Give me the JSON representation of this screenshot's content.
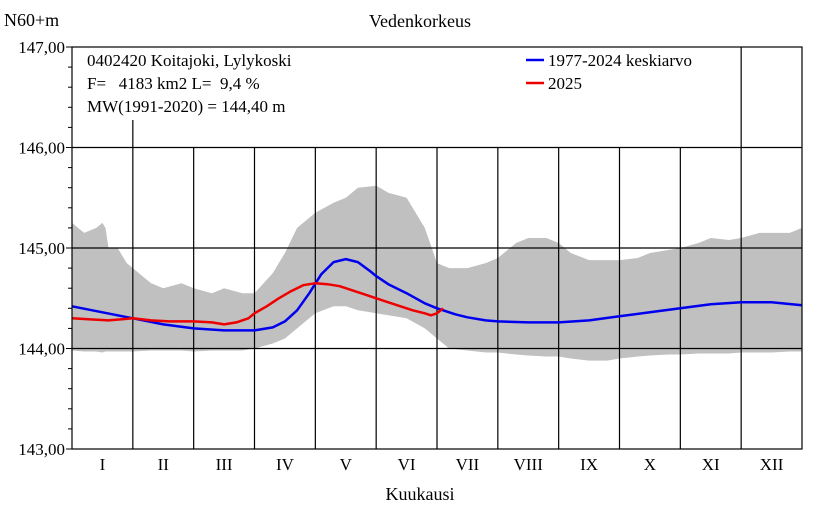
{
  "header": {
    "unit_label": "N60+m",
    "title": "Vedenkorkeus"
  },
  "info": {
    "station": "0402420 Koitajoki, Lylykoski",
    "area_line": "F=   4183 km2 L=  9,4 %",
    "mean_line": "MW(1991-2020) = 144,40 m"
  },
  "legend": {
    "mean": "1977-2024 keskiarvo",
    "current": "2025"
  },
  "colors": {
    "mean": "#0000ee",
    "current": "#ee0000",
    "range": "#c0c0c0",
    "grid": "#000000"
  },
  "chart_data": {
    "type": "line",
    "title": "Vedenkorkeus",
    "ylabel": "N60+m",
    "xlabel": "Kuukausi",
    "ylim": [
      143.0,
      147.0
    ],
    "xlim": [
      0,
      12
    ],
    "x_unit": "month",
    "yticks": [
      "147,00",
      "146,00",
      "145,00",
      "144,00",
      "143,00"
    ],
    "ytick_values": [
      147,
      146,
      145,
      144,
      143
    ],
    "categories": [
      "I",
      "II",
      "III",
      "IV",
      "V",
      "VI",
      "VII",
      "VIII",
      "IX",
      "X",
      "XI",
      "XII"
    ],
    "grid": true,
    "legend_position": "top-right",
    "range_band": {
      "x": [
        0,
        0.2,
        0.4,
        0.5,
        0.55,
        0.6,
        0.75,
        0.9,
        1.0,
        1.3,
        1.5,
        1.8,
        2.0,
        2.3,
        2.5,
        2.8,
        3.0,
        3.3,
        3.5,
        3.7,
        4.0,
        4.3,
        4.5,
        4.7,
        5.0,
        5.2,
        5.5,
        5.8,
        6.0,
        6.2,
        6.5,
        6.8,
        7.0,
        7.3,
        7.5,
        7.8,
        8.0,
        8.2,
        8.5,
        8.8,
        9.0,
        9.3,
        9.5,
        9.8,
        10.0,
        10.3,
        10.5,
        10.8,
        11.0,
        11.3,
        11.5,
        11.8,
        12.0
      ],
      "max": [
        145.25,
        145.15,
        145.2,
        145.25,
        145.2,
        145.0,
        145.0,
        144.85,
        144.8,
        144.65,
        144.6,
        144.65,
        144.6,
        144.55,
        144.6,
        144.55,
        144.55,
        144.75,
        144.95,
        145.2,
        145.35,
        145.45,
        145.5,
        145.6,
        145.62,
        145.55,
        145.5,
        145.2,
        144.85,
        144.8,
        144.8,
        144.85,
        144.9,
        145.05,
        145.1,
        145.1,
        145.05,
        144.95,
        144.88,
        144.88,
        144.88,
        144.9,
        144.95,
        144.98,
        145.0,
        145.05,
        145.1,
        145.08,
        145.1,
        145.15,
        145.15,
        145.15,
        145.2
      ],
      "min": [
        143.98,
        143.97,
        143.97,
        143.96,
        143.97,
        143.97,
        143.97,
        143.97,
        143.97,
        143.98,
        143.98,
        143.98,
        143.97,
        143.98,
        143.98,
        143.98,
        144.0,
        144.05,
        144.1,
        144.2,
        144.35,
        144.42,
        144.42,
        144.38,
        144.35,
        144.33,
        144.3,
        144.2,
        144.1,
        144.0,
        143.98,
        143.96,
        143.96,
        143.94,
        143.93,
        143.92,
        143.92,
        143.9,
        143.88,
        143.88,
        143.9,
        143.92,
        143.93,
        143.94,
        143.94,
        143.95,
        143.95,
        143.95,
        143.96,
        143.96,
        143.96,
        143.97,
        143.97
      ]
    },
    "series": [
      {
        "name": "1977-2024 keskiarvo",
        "color": "#0000ee",
        "x": [
          0,
          0.5,
          1.0,
          1.5,
          2.0,
          2.5,
          3.0,
          3.3,
          3.5,
          3.7,
          3.9,
          4.1,
          4.3,
          4.5,
          4.7,
          4.9,
          5.0,
          5.2,
          5.5,
          5.8,
          6.0,
          6.3,
          6.5,
          6.8,
          7.0,
          7.5,
          8.0,
          8.5,
          9.0,
          9.5,
          10.0,
          10.5,
          11.0,
          11.5,
          12.0
        ],
        "y": [
          144.42,
          144.36,
          144.3,
          144.24,
          144.2,
          144.18,
          144.18,
          144.21,
          144.27,
          144.38,
          144.55,
          144.74,
          144.86,
          144.89,
          144.86,
          144.77,
          144.72,
          144.64,
          144.55,
          144.45,
          144.4,
          144.34,
          144.31,
          144.28,
          144.27,
          144.26,
          144.26,
          144.28,
          144.32,
          144.36,
          144.4,
          144.44,
          144.46,
          144.46,
          144.43
        ]
      },
      {
        "name": "2025",
        "color": "#ee0000",
        "x": [
          0,
          0.3,
          0.6,
          1.0,
          1.3,
          1.6,
          2.0,
          2.3,
          2.5,
          2.7,
          2.9,
          3.0,
          3.2,
          3.4,
          3.6,
          3.8,
          4.0,
          4.2,
          4.4,
          4.6,
          4.8,
          5.0,
          5.2,
          5.4,
          5.6,
          5.8,
          5.9,
          6.0,
          6.1
        ],
        "y": [
          144.3,
          144.29,
          144.28,
          144.3,
          144.28,
          144.27,
          144.27,
          144.26,
          144.24,
          144.26,
          144.3,
          144.35,
          144.42,
          144.5,
          144.57,
          144.63,
          144.65,
          144.64,
          144.62,
          144.58,
          144.54,
          144.5,
          144.46,
          144.42,
          144.38,
          144.35,
          144.33,
          144.35,
          144.4
        ]
      }
    ]
  }
}
